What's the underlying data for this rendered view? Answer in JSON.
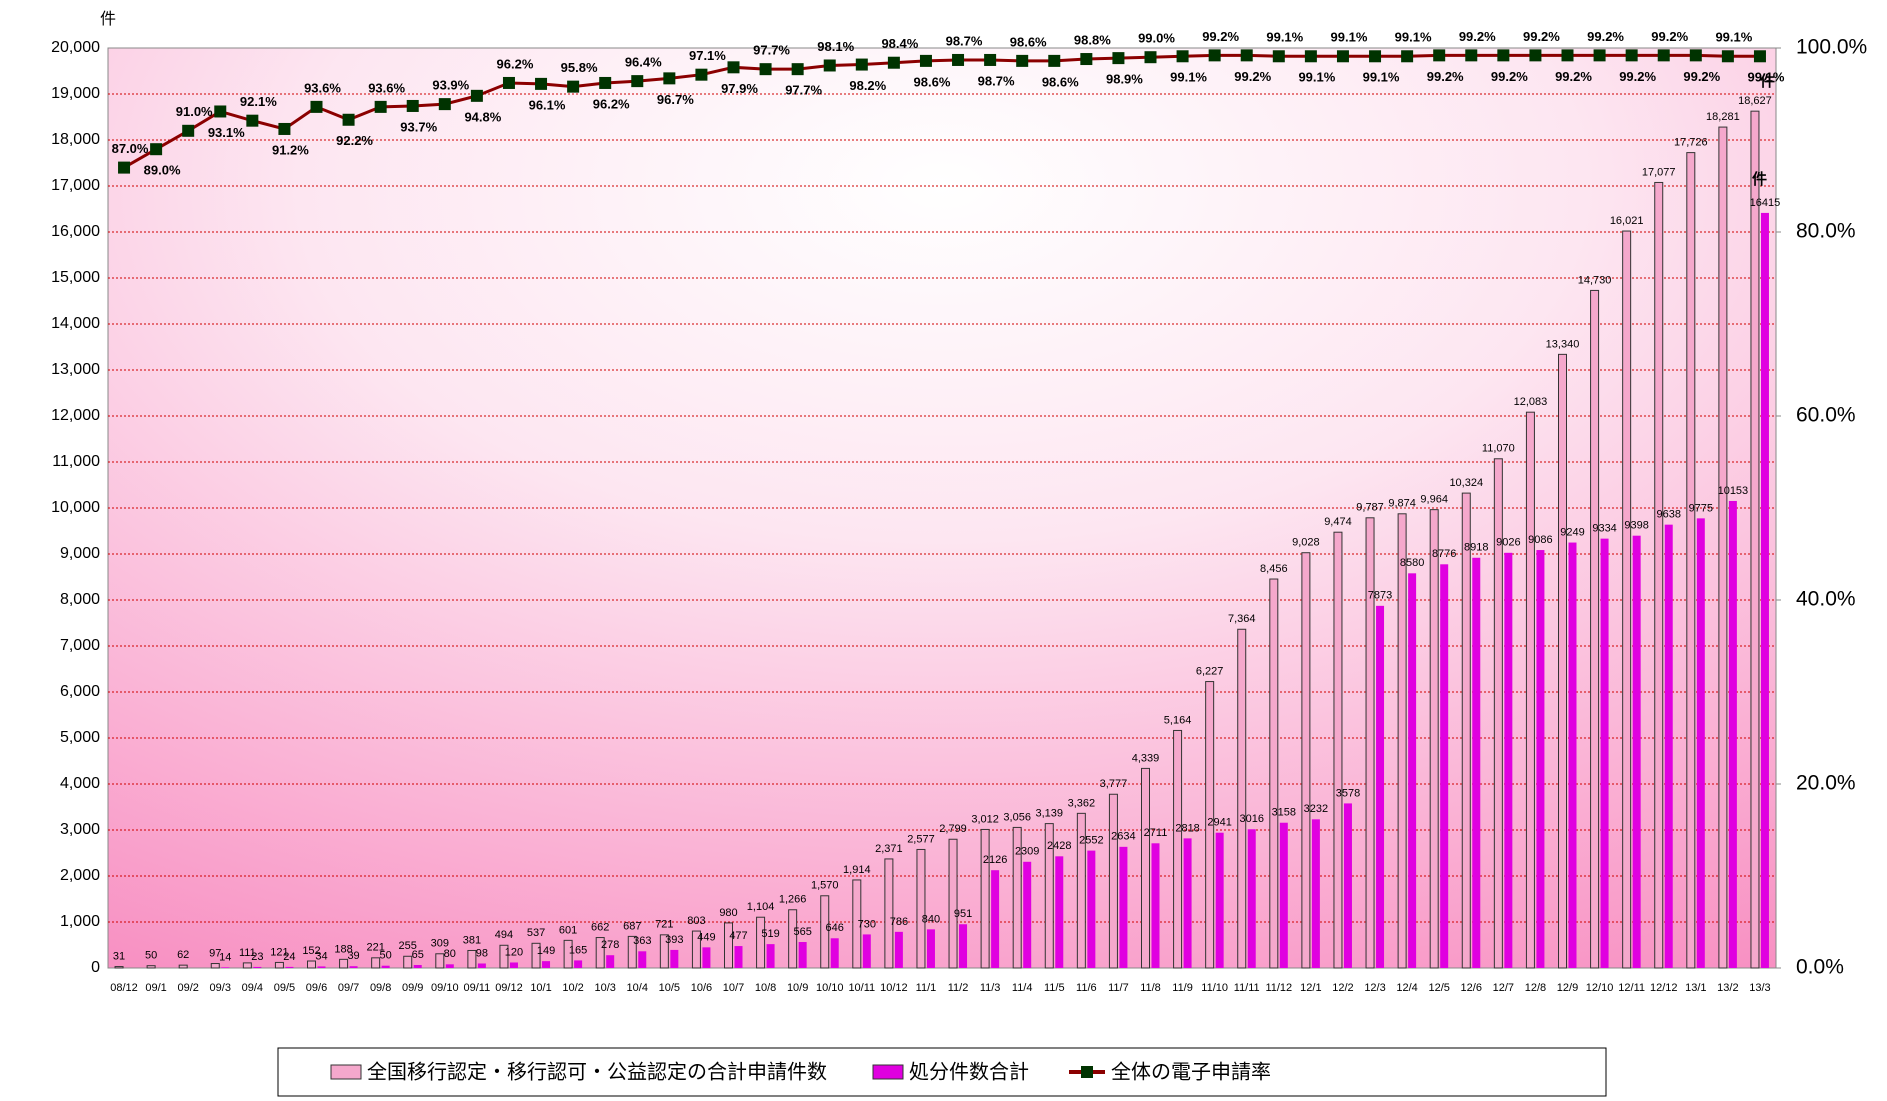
{
  "chart_data": {
    "type": "bar_line",
    "y_unit": "件",
    "annotations": [
      "件",
      "件"
    ],
    "categories": [
      "08/12",
      "09/1",
      "09/2",
      "09/3",
      "09/4",
      "09/5",
      "09/6",
      "09/7",
      "09/8",
      "09/9",
      "09/10",
      "09/11",
      "09/12",
      "10/1",
      "10/2",
      "10/3",
      "10/4",
      "10/5",
      "10/6",
      "10/7",
      "10/8",
      "10/9",
      "10/10",
      "10/11",
      "10/12",
      "11/1",
      "11/2",
      "11/3",
      "11/4",
      "11/5",
      "11/6",
      "11/7",
      "11/8",
      "11/9",
      "11/10",
      "11/11",
      "11/12",
      "12/1",
      "12/2",
      "12/3",
      "12/4",
      "12/5",
      "12/6",
      "12/7",
      "12/8",
      "12/9",
      "12/10",
      "12/11",
      "12/12",
      "13/1",
      "13/2",
      "13/3"
    ],
    "ylim": [
      0,
      20000
    ],
    "yticks": [
      0,
      {
        "value": 1000,
        "label": "1,000"
      },
      {
        "value": 2000,
        "label": "2,000"
      },
      {
        "value": 3000,
        "label": "3,000"
      },
      {
        "value": 4000,
        "label": "4,000"
      },
      {
        "value": 5000,
        "label": "5,000"
      },
      {
        "value": 6000,
        "label": "6,000"
      },
      {
        "value": 7000,
        "label": "7,000"
      },
      {
        "value": 8000,
        "label": "8,000"
      },
      {
        "value": 9000,
        "label": "9,000"
      },
      {
        "value": 10000,
        "label": "10,000"
      },
      {
        "value": 11000,
        "label": "11,000"
      },
      {
        "value": 12000,
        "label": "12,000"
      },
      {
        "value": 13000,
        "label": "13,000"
      },
      {
        "value": 14000,
        "label": "14,000"
      },
      {
        "value": 15000,
        "label": "15,000"
      },
      {
        "value": 16000,
        "label": "16,000"
      },
      {
        "value": 17000,
        "label": "17,000"
      },
      {
        "value": 18000,
        "label": "18,000"
      },
      {
        "value": 19000,
        "label": "19,000"
      },
      {
        "value": 20000,
        "label": "20,000"
      }
    ],
    "y2lim": [
      0,
      100
    ],
    "y2ticks": [
      {
        "value": 0,
        "label": "0.0%"
      },
      {
        "value": 20,
        "label": "20.0%"
      },
      {
        "value": 40,
        "label": "40.0%"
      },
      {
        "value": 60,
        "label": "60.0%"
      },
      {
        "value": 80,
        "label": "80.0%"
      },
      {
        "value": 100,
        "label": "100.0%"
      }
    ],
    "grid": true,
    "series": [
      {
        "name": "全国移行認定・移行認可・公益認定の合計申請件数",
        "type": "bar",
        "color": "#f5a8cc",
        "values": [
          31,
          50,
          62,
          97,
          111,
          121,
          152,
          188,
          221,
          255,
          309,
          381,
          494,
          537,
          601,
          662,
          687,
          721,
          803,
          980,
          1104,
          1266,
          1570,
          1914,
          2371,
          2577,
          2799,
          3012,
          3056,
          3139,
          3362,
          3777,
          4339,
          5164,
          6227,
          7364,
          8456,
          9028,
          9474,
          9787,
          9874,
          9964,
          10324,
          11070,
          12083,
          13340,
          14730,
          16021,
          17077,
          17726,
          18281,
          18627
        ],
        "value_labels": [
          "31",
          "50",
          "62",
          "97",
          "111",
          "121",
          "152",
          "188",
          "221",
          "255",
          "309",
          "381",
          "494",
          "537",
          "601",
          "662",
          "687",
          "721",
          "803",
          "980",
          "1,104",
          "1,266",
          "1,570",
          "1,914",
          "2,371",
          "2,577",
          "2,799",
          "3,012",
          "3,056",
          "3,139",
          "3,362",
          "3,777",
          "4,339",
          "5,164",
          "6,227",
          "7,364",
          "8,456",
          "9,028",
          "9,474",
          "9,787",
          "9,874",
          "9,964",
          "10,324",
          "11,070",
          "12,083",
          "13,340",
          "14,730",
          "16,021",
          "17,077",
          "17,726",
          "18,281",
          "18,627"
        ]
      },
      {
        "name": "処分件数合計",
        "type": "bar",
        "color": "#e000e0",
        "values": [
          null,
          null,
          null,
          14,
          23,
          24,
          34,
          39,
          50,
          65,
          80,
          98,
          120,
          149,
          165,
          278,
          363,
          393,
          449,
          477,
          519,
          565,
          646,
          730,
          786,
          840,
          951,
          2126,
          2309,
          2428,
          2552,
          2634,
          2711,
          2818,
          2941,
          3016,
          3158,
          3232,
          3578,
          7873,
          8580,
          8776,
          8918,
          9026,
          9086,
          9249,
          9334,
          9398,
          9638,
          9775,
          10153,
          16415
        ]
      },
      {
        "name": "全体の電子申請率",
        "type": "line",
        "axis": "y2",
        "color": "#8b0000",
        "marker_color": "#003300",
        "values": [
          87.0,
          89.0,
          91.0,
          93.1,
          92.1,
          91.2,
          93.6,
          92.2,
          93.6,
          93.7,
          93.9,
          94.8,
          96.2,
          96.1,
          95.8,
          96.2,
          96.4,
          96.7,
          97.1,
          97.9,
          97.7,
          97.7,
          98.1,
          98.2,
          98.4,
          98.6,
          98.7,
          98.7,
          98.6,
          98.6,
          98.8,
          98.9,
          99.0,
          99.1,
          99.2,
          99.2,
          99.1,
          99.1,
          99.1,
          99.1,
          99.1,
          99.2,
          99.2,
          99.2,
          99.2,
          99.2,
          99.2,
          99.2,
          99.2,
          99.2,
          99.1,
          99.1
        ],
        "value_labels": [
          "87.0%",
          "89.0%",
          "91.0%",
          "93.1%",
          "92.1%",
          "91.2%",
          "93.6%",
          "92.2%",
          "93.6%",
          "93.7%",
          "93.9%",
          "94.8%",
          "96.2%",
          "96.1%",
          "95.8%",
          "96.2%",
          "96.4%",
          "96.7%",
          "97.1%",
          "97.9%",
          "97.7%",
          "97.7%",
          "98.1%",
          "98.2%",
          "98.4%",
          "98.6%",
          "98.7%",
          "98.7%",
          "98.6%",
          "98.6%",
          "98.8%",
          "98.9%",
          "99.0%",
          "99.1%",
          "99.2%",
          "99.2%",
          "99.1%",
          "99.1%",
          "99.1%",
          "99.1%",
          "99.1%",
          "99.2%",
          "99.2%",
          "99.2%",
          "99.2%",
          "99.2%",
          "99.2%",
          "99.2%",
          "99.2%",
          "99.2%",
          "99.1%",
          "99.1%"
        ]
      }
    ]
  }
}
